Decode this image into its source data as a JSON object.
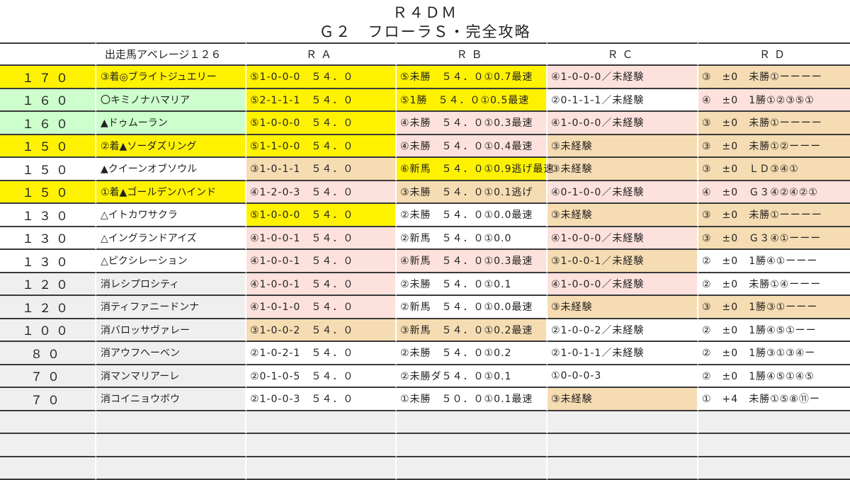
{
  "title": "Ｒ４ＤＭ",
  "subtitle": "Ｇ２　フローラＳ・完全攻略",
  "colors": {
    "yellow": "#fff200",
    "green": "#ccffcc",
    "pink": "#fde1dc",
    "tan": "#f6dcb2",
    "white": "#ffffff",
    "gray": "#efefef"
  },
  "headers": [
    "",
    "出走馬アベレージ１２６",
    "ＲＡ",
    "ＲＢ",
    "ＲＣ",
    "ＲＤ"
  ],
  "rows": [
    {
      "score": "１７０",
      "name": "③着◎ブライトジュエリー",
      "bg": "y",
      "cells": [
        [
          "⑤1-0-0-0　５４．０",
          "y"
        ],
        [
          "⑤未勝　５４．０①0.7最速",
          "y"
        ],
        [
          "④1-0-0-0／未経験",
          "p"
        ],
        [
          "③　±0　未勝①ーーーー",
          "t"
        ]
      ]
    },
    {
      "score": "１６０",
      "name": "〇キミノナハマリア",
      "bg": "gr",
      "cells": [
        [
          "⑤2-1-1-1　５４．０",
          "y"
        ],
        [
          "⑤1勝　５４．０①0.5最速",
          "y"
        ],
        [
          "②0-1-1-1／未経験",
          "w"
        ],
        [
          "④　±0　1勝①②③⑤①",
          "p"
        ]
      ]
    },
    {
      "score": "１６０",
      "name": "▲ドゥムーラン",
      "bg": "gr",
      "cells": [
        [
          "⑤1-0-0-0　５４．０",
          "y"
        ],
        [
          "④未勝　５４．０①0.3最速",
          "p"
        ],
        [
          "④1-0-0-0／未経験",
          "p"
        ],
        [
          "③　±0　未勝①ーーーー",
          "t"
        ]
      ]
    },
    {
      "score": "１５０",
      "name": "②着▲ソーダズリング",
      "bg": "y",
      "cells": [
        [
          "⑤1-1-0-0　５４．０",
          "y"
        ],
        [
          "④未勝　５４．０①0.4最速",
          "p"
        ],
        [
          "③未経験",
          "t"
        ],
        [
          "③　±0　未勝①②ーーー",
          "t"
        ]
      ]
    },
    {
      "score": "１５０",
      "name": "▲クイーンオブソウル",
      "bg": "w",
      "cells": [
        [
          "③1-0-1-1　５４．０",
          "t"
        ],
        [
          "⑥新馬　５４．０①0.9逃げ最速",
          "y"
        ],
        [
          "③未経験",
          "t"
        ],
        [
          "③　±0　ＬＤ③④①",
          "t"
        ]
      ]
    },
    {
      "score": "１５０",
      "name": "①着▲ゴールデンハインド",
      "bg": "y",
      "cells": [
        [
          "④1-2-0-3　５４．０",
          "p"
        ],
        [
          "③未勝　５４．０①0.1逃げ",
          "t"
        ],
        [
          "④0-1-0-0／未経験",
          "p"
        ],
        [
          "④　±0　Ｇ３④②④②①",
          "p"
        ]
      ]
    },
    {
      "score": "１３０",
      "name": "△イトカワサクラ",
      "bg": "w",
      "cells": [
        [
          "⑤1-0-0-0　５４．０",
          "y"
        ],
        [
          "②未勝　５４．０①0.0最速",
          "w"
        ],
        [
          "③未経験",
          "t"
        ],
        [
          "③　±0　未勝①ーーーー",
          "t"
        ]
      ]
    },
    {
      "score": "１３０",
      "name": "△イングランドアイズ",
      "bg": "w",
      "cells": [
        [
          "④1-0-0-1　５４．０",
          "p"
        ],
        [
          "②新馬　５４．０①0.0",
          "w"
        ],
        [
          "④1-0-0-0／未経験",
          "p"
        ],
        [
          "③　±0　Ｇ３④①ーーー",
          "t"
        ]
      ]
    },
    {
      "score": "１３０",
      "name": "△ピクシレーション",
      "bg": "w",
      "cells": [
        [
          "④1-0-0-1　５４．０",
          "p"
        ],
        [
          "④新馬　５４．０①0.3最速",
          "p"
        ],
        [
          "③1-0-0-1／未経験",
          "t"
        ],
        [
          "②　±0　1勝④①ーーー",
          "w"
        ]
      ]
    },
    {
      "score": "１２０",
      "name": "消レシプロシティ",
      "bg": "g",
      "cells": [
        [
          "④1-0-0-1　５４．０",
          "p"
        ],
        [
          "②未勝　５４．０①0.1",
          "w"
        ],
        [
          "④1-0-0-0／未経験",
          "p"
        ],
        [
          "②　±0　未勝①④ーーー",
          "w"
        ]
      ]
    },
    {
      "score": "１２０",
      "name": "消ティファニードンナ",
      "bg": "g",
      "cells": [
        [
          "④1-0-1-0　５４．０",
          "p"
        ],
        [
          "②新馬　５４．０①0.0最速",
          "w"
        ],
        [
          "③未経験",
          "t"
        ],
        [
          "③　±0　1勝③①ーーー",
          "t"
        ]
      ]
    },
    {
      "score": "１００",
      "name": "消バロッサヴァレー",
      "bg": "g",
      "cells": [
        [
          "③1-0-0-2　５４．０",
          "t"
        ],
        [
          "③新馬　５４．０①0.2最速",
          "t"
        ],
        [
          "②1-0-0-2／未経験",
          "w"
        ],
        [
          "②　±0　1勝④⑤①ーー",
          "w"
        ]
      ]
    },
    {
      "score": "８０",
      "name": "消アウフヘーベン",
      "bg": "g",
      "cells": [
        [
          "②1-0-2-1　５４．０",
          "w"
        ],
        [
          "②未勝　５４．０①0.2",
          "w"
        ],
        [
          "②1-0-1-1／未経験",
          "w"
        ],
        [
          "②　±0　1勝③①③④ー",
          "w"
        ]
      ]
    },
    {
      "score": "７０",
      "name": "消マンマリアーレ",
      "bg": "g",
      "cells": [
        [
          "②0-1-0-5　５４．０",
          "w"
        ],
        [
          "②未勝ダ５４．０①0.1",
          "w"
        ],
        [
          "①0-0-0-3",
          "w"
        ],
        [
          "②　±0　1勝④⑤①④⑤",
          "w"
        ]
      ]
    },
    {
      "score": "７０",
      "name": "消コイニョウボウ",
      "bg": "g",
      "cells": [
        [
          "②1-0-0-3　５４．０",
          "w"
        ],
        [
          "①未勝　５０．０①0.1最速",
          "w"
        ],
        [
          "③未経験",
          "t"
        ],
        [
          "①　+4　未勝①⑤⑧⑪ー",
          "w"
        ]
      ]
    }
  ],
  "empty_rows": 3
}
